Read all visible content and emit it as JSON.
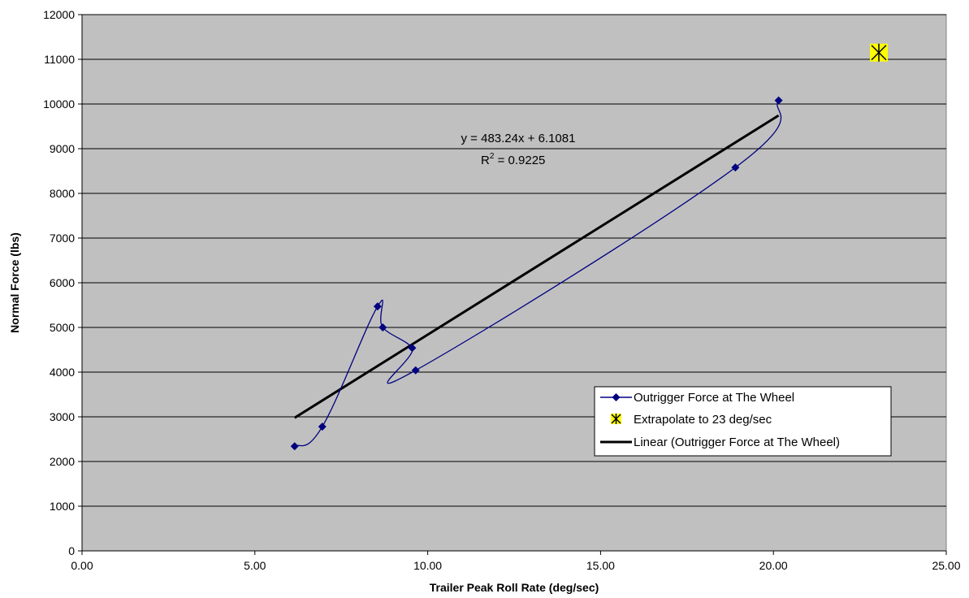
{
  "chart_data": {
    "type": "scatter",
    "xlabel": "Trailer Peak Roll Rate (deg/sec)",
    "ylabel": "Normal Force (lbs)",
    "xlim": [
      0,
      25
    ],
    "ylim": [
      0,
      12000
    ],
    "x_ticks": [
      "0.00",
      "5.00",
      "10.00",
      "15.00",
      "20.00",
      "25.00"
    ],
    "y_ticks": [
      "0",
      "1000",
      "2000",
      "3000",
      "4000",
      "5000",
      "6000",
      "7000",
      "8000",
      "9000",
      "10000",
      "11000",
      "12000"
    ],
    "grid": "horizontal",
    "legend_position": "lower-right",
    "series": [
      {
        "name": "Outrigger Force at The Wheel",
        "style": "smoothed line with diamond markers",
        "color": "#000080",
        "points": [
          [
            6.15,
            2340
          ],
          [
            6.95,
            2780
          ],
          [
            8.55,
            5470
          ],
          [
            8.7,
            5000
          ],
          [
            9.55,
            4540
          ],
          [
            9.65,
            4040
          ],
          [
            18.9,
            8580
          ],
          [
            20.15,
            10080
          ]
        ]
      },
      {
        "name": "Extrapolate to 23 deg/sec",
        "style": "star marker on yellow square",
        "color": "#ffff00",
        "points": [
          [
            23.05,
            11150
          ]
        ]
      },
      {
        "name": "Linear (Outrigger Force at The Wheel)",
        "style": "trendline",
        "color": "#000000",
        "slope": 483.24,
        "intercept": 6.1081,
        "x_range": [
          6.15,
          20.15
        ]
      }
    ],
    "annotations": {
      "equation": "y = 483.24x + 6.1081",
      "r2_prefix": "R",
      "r2_superscript": "2",
      "r2_value": " = 0.9225"
    },
    "colors": {
      "plot_background": "#c0c0c0",
      "gridline": "#000000"
    }
  }
}
